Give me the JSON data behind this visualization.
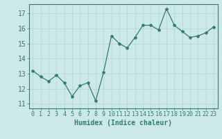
{
  "xlabel": "Humidex (Indice chaleur)",
  "x": [
    0,
    1,
    2,
    3,
    4,
    5,
    6,
    7,
    8,
    9,
    10,
    11,
    12,
    13,
    14,
    15,
    16,
    17,
    18,
    19,
    20,
    21,
    22,
    23
  ],
  "y": [
    13.2,
    12.8,
    12.5,
    12.9,
    12.4,
    11.5,
    12.2,
    12.4,
    11.2,
    13.1,
    15.5,
    15.0,
    14.7,
    15.4,
    16.2,
    16.2,
    15.9,
    17.3,
    16.2,
    15.8,
    15.4,
    15.5,
    15.7,
    16.1
  ],
  "line_color": "#2e7d6e",
  "marker": "*",
  "marker_size": 3,
  "bg_color": "#cce8e8",
  "grid_color": "#aed4d4",
  "tick_color": "#2e7d6e",
  "axis_color": "#2e7d6e",
  "label_color": "#2e7d6e",
  "ylim": [
    10.7,
    17.6
  ],
  "yticks": [
    11,
    12,
    13,
    14,
    15,
    16,
    17
  ],
  "xlim": [
    -0.5,
    23.5
  ],
  "xticks": [
    0,
    1,
    2,
    3,
    4,
    5,
    6,
    7,
    8,
    9,
    10,
    11,
    12,
    13,
    14,
    15,
    16,
    17,
    18,
    19,
    20,
    21,
    22,
    23
  ],
  "xlabel_fontsize": 7,
  "tick_fontsize": 6,
  "ytick_fontsize": 7
}
